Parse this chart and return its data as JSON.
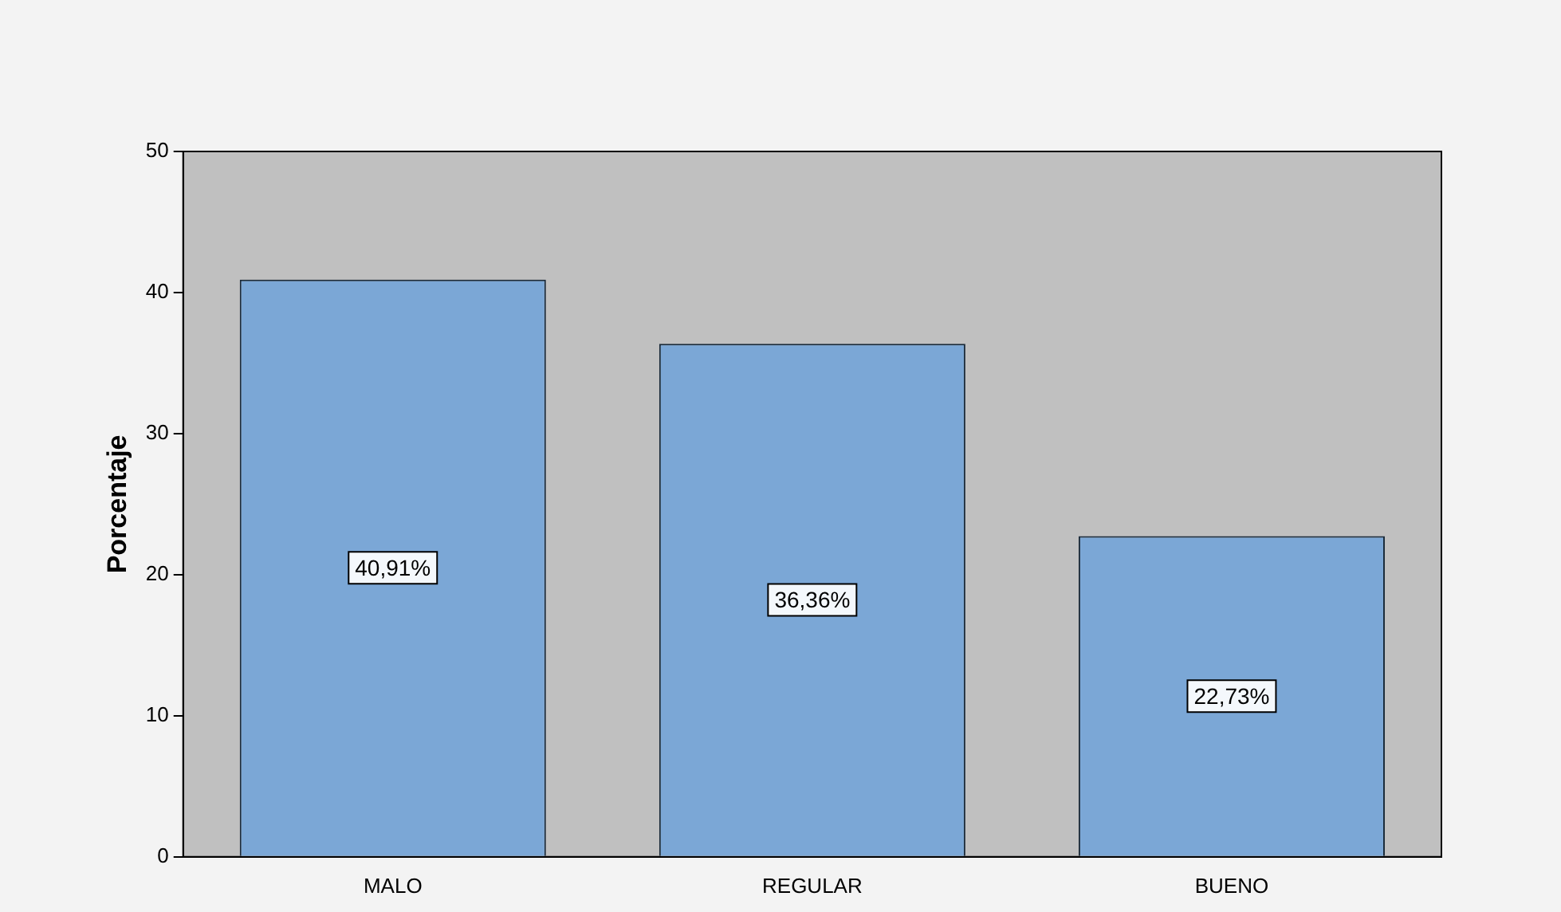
{
  "chart_data": {
    "type": "bar",
    "ylabel": "Porcentaje",
    "categories": [
      "MALO",
      "REGULAR",
      "BUENO"
    ],
    "values": [
      40.91,
      36.36,
      22.73
    ],
    "value_labels": [
      "40,91%",
      "36,36%",
      "22,73%"
    ],
    "color": "#7ba7d6",
    "ylim": [
      0,
      50
    ],
    "yticks": [
      0,
      10,
      20,
      30,
      40,
      50
    ],
    "grid": false,
    "legend": false
  }
}
